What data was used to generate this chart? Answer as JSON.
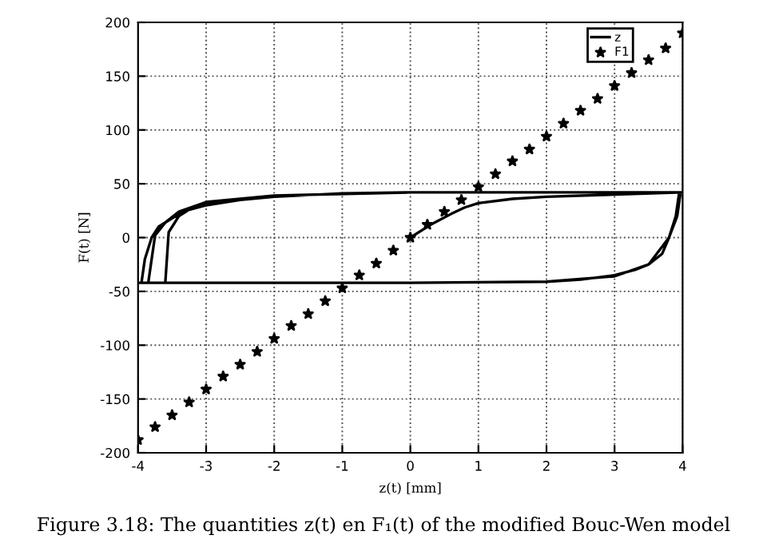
{
  "chart_data": {
    "type": "line",
    "xlabel": "z(t) [mm]",
    "ylabel": "F(t) [N]",
    "xlim": [
      -4,
      4
    ],
    "xticks": [
      -4,
      -3,
      -2,
      -1,
      0,
      1,
      2,
      3,
      4
    ],
    "ylim": [
      -200,
      200
    ],
    "yticks": [
      -200,
      -150,
      -100,
      -50,
      0,
      50,
      100,
      150,
      200
    ],
    "grid": true,
    "legend": "top right",
    "annotations": [
      "Figure 3.18: The quantities z(t) en F₁(t) of the modified Bouc-Wen model"
    ],
    "series": [
      {
        "name": "z",
        "type": "line",
        "color": "#000000",
        "marker": "none",
        "line_style": "solid",
        "x": [
          0,
          0.3,
          0.6,
          0.8,
          1.0,
          1.5,
          2,
          3,
          4,
          0,
          -1,
          -2,
          -2.5,
          -3,
          -3.3,
          -3.5,
          -3.7,
          -3.8,
          -3.9,
          -3.95,
          -4,
          -2,
          0,
          2,
          2.5,
          3,
          3.3,
          3.5,
          3.7,
          3.8,
          3.9,
          3.95,
          4,
          0,
          -2,
          -3,
          -3.4,
          -3.6,
          -3.75,
          -3.85,
          -3.85,
          -2,
          0,
          2,
          3,
          3.5,
          3.8,
          3.92,
          3.97,
          0,
          -2,
          -2.8,
          -3.2,
          -3.4,
          -3.55,
          -3.6
        ],
        "values": [
          0,
          12,
          22,
          28,
          32,
          36,
          38,
          40,
          42,
          42,
          41,
          38,
          35,
          30,
          25,
          18,
          10,
          0,
          -20,
          -42,
          -42,
          -42,
          -42,
          -41,
          -39,
          -35,
          -30,
          -25,
          -15,
          0,
          20,
          42,
          42,
          42,
          39,
          33,
          24,
          14,
          2,
          -42,
          -42,
          -42,
          -42,
          -41,
          -36,
          -25,
          0,
          20,
          42,
          42,
          39,
          34,
          28,
          20,
          5,
          -42
        ]
      },
      {
        "name": "F1",
        "type": "scatter",
        "color": "#000000",
        "marker": "star",
        "x": [
          -4,
          -3.75,
          -3.5,
          -3.25,
          -3,
          -2.75,
          -2.5,
          -2.25,
          -2,
          -1.75,
          -1.5,
          -1.25,
          -1,
          -0.75,
          -0.5,
          -0.25,
          0,
          0.25,
          0.5,
          0.75,
          1,
          1.25,
          1.5,
          1.75,
          2,
          2.25,
          2.5,
          2.75,
          3,
          3.25,
          3.5,
          3.75,
          4
        ],
        "values": [
          -188,
          -176,
          -165,
          -153,
          -141,
          -129,
          -118,
          -106,
          -94,
          -82,
          -71,
          -59,
          -47,
          -35,
          -24,
          -12,
          0,
          12,
          24,
          35,
          47,
          59,
          71,
          82,
          94,
          106,
          118,
          129,
          141,
          153,
          165,
          176,
          190
        ]
      }
    ]
  }
}
